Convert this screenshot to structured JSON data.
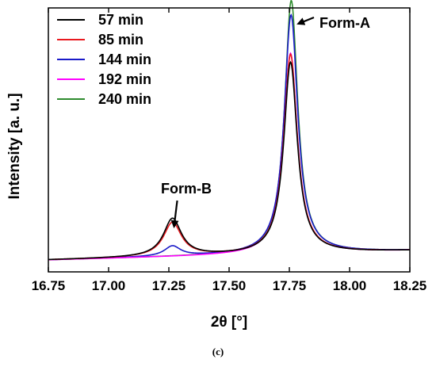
{
  "caption": "(c)",
  "chart_data": {
    "type": "line",
    "xlabel": "2θ [°]",
    "ylabel": "Intensity [a. u.]",
    "xlim": [
      16.75,
      18.25
    ],
    "ylim": [
      0,
      100
    ],
    "xticks": [
      "16.75",
      "17.00",
      "17.25",
      "17.50",
      "17.75",
      "18.00",
      "18.25"
    ],
    "xtick_values": [
      16.75,
      17.0,
      17.25,
      17.5,
      17.75,
      18.0,
      18.25
    ],
    "legend_position": "top-left",
    "grid": false,
    "series": [
      {
        "name": "57 min",
        "color": "#000000",
        "baseline": 4.5,
        "slope": 3.5,
        "peakA": {
          "x": 17.755,
          "h": 72.5,
          "w": 0.034
        },
        "peakB": {
          "x": 17.265,
          "h": 14.3,
          "w": 0.045
        }
      },
      {
        "name": "85 min",
        "color": "#e8191f",
        "baseline": 4.5,
        "slope": 3.5,
        "peakA": {
          "x": 17.755,
          "h": 75.5,
          "w": 0.034
        },
        "peakB": {
          "x": 17.265,
          "h": 12.8,
          "w": 0.045
        }
      },
      {
        "name": "144 min",
        "color": "#1a1ac8",
        "baseline": 4.5,
        "slope": 3.5,
        "peakA": {
          "x": 17.757,
          "h": 90.5,
          "w": 0.034
        },
        "peakB": {
          "x": 17.265,
          "h": 3.8,
          "w": 0.04
        }
      },
      {
        "name": "192 min",
        "color": "#ff00ff",
        "baseline": 4.5,
        "slope": 3.5,
        "peakA": {
          "x": 17.755,
          "h": 76.0,
          "w": 0.034
        },
        "peakB": {
          "x": 17.265,
          "h": 0.0,
          "w": 0.04
        }
      },
      {
        "name": "240 min",
        "color": "#2e8b2e",
        "baseline": 4.5,
        "slope": 3.5,
        "peakA": {
          "x": 17.758,
          "h": 96.0,
          "w": 0.033
        },
        "peakB": {
          "x": 17.265,
          "h": 0.0,
          "w": 0.04
        }
      }
    ],
    "annotations": [
      {
        "text": "Form-A",
        "arrow_to": {
          "x": 17.76,
          "y": 100
        }
      },
      {
        "text": "Form-B",
        "arrow_to": {
          "x": 17.265,
          "y": 16.5
        }
      }
    ]
  }
}
